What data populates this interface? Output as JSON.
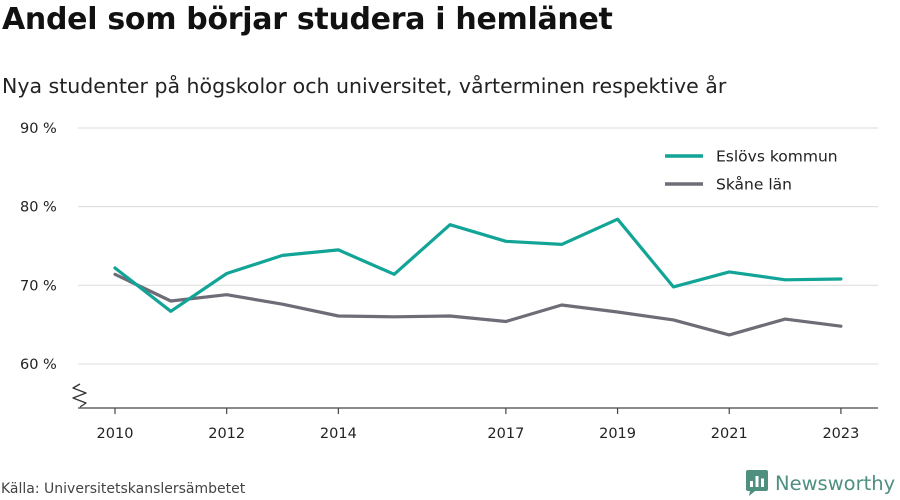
{
  "chart_data": {
    "type": "line",
    "title": "Andel som börjar studera i hemlänet",
    "subtitle": "Nya studenter på högskolor och universitet, vårterminen respektive år",
    "x": [
      2010,
      2011,
      2012,
      2013,
      2014,
      2015,
      2016,
      2017,
      2018,
      2019,
      2020,
      2021,
      2022,
      2023
    ],
    "series": [
      {
        "name": "Eslövs kommun",
        "color": "#12a496",
        "values": [
          72.2,
          66.7,
          71.5,
          73.8,
          74.5,
          71.4,
          77.7,
          75.6,
          75.2,
          78.4,
          69.8,
          71.7,
          70.7,
          70.8
        ]
      },
      {
        "name": "Skåne län",
        "color": "#6e6c77",
        "values": [
          71.4,
          68.0,
          68.8,
          67.6,
          66.1,
          66.0,
          66.1,
          65.4,
          67.5,
          66.6,
          65.6,
          63.7,
          65.7,
          64.8
        ]
      }
    ],
    "xticks": [
      2010,
      2012,
      2014,
      2017,
      2019,
      2021,
      2023
    ],
    "yticks": [
      60,
      70,
      80,
      90
    ],
    "ytick_labels": [
      "60 %",
      "70 %",
      "80 %",
      "90 %"
    ],
    "xlim": [
      2009.4,
      2023.65
    ],
    "ylim": [
      54.4,
      90
    ],
    "axis_break": true,
    "grid": true,
    "legend_position": "top-right"
  },
  "source": "Källa: Universitetskanslersämbetet",
  "brand": {
    "name": "Newsworthy",
    "color": "#4f8f80"
  }
}
